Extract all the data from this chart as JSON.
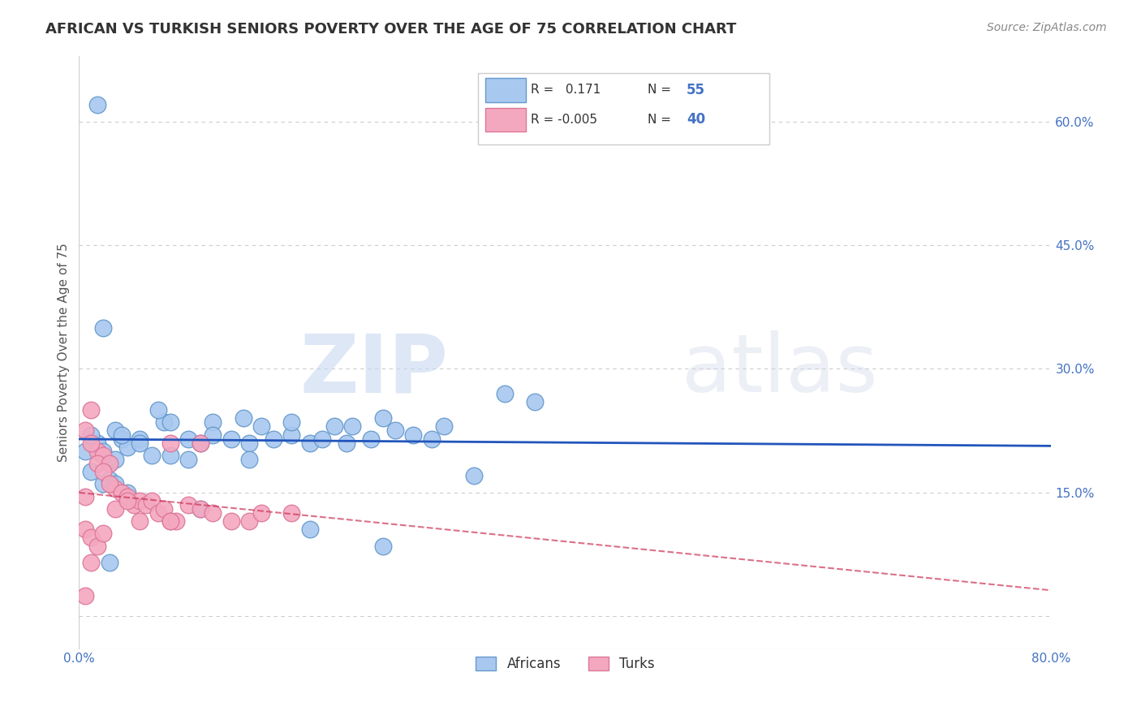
{
  "title": "AFRICAN VS TURKISH SENIORS POVERTY OVER THE AGE OF 75 CORRELATION CHART",
  "source": "Source: ZipAtlas.com",
  "ylabel": "Seniors Poverty Over the Age of 75",
  "xlim": [
    0.0,
    0.8
  ],
  "ylim": [
    -0.04,
    0.68
  ],
  "xticks": [
    0.0,
    0.2,
    0.4,
    0.6,
    0.8
  ],
  "xtick_labels": [
    "0.0%",
    "",
    "",
    "",
    "80.0%"
  ],
  "ytick_values": [
    0.0,
    0.15,
    0.3,
    0.45,
    0.6
  ],
  "ytick_labels": [
    "",
    "15.0%",
    "30.0%",
    "45.0%",
    "60.0%"
  ],
  "grid_color": "#cccccc",
  "background_color": "#ffffff",
  "africans_color": "#a8c8f0",
  "turks_color": "#f4a8c0",
  "africans_edge_color": "#6699cc",
  "turks_edge_color": "#dd7799",
  "trend_blue_color": "#2255bb",
  "trend_pink_color": "#cc3355",
  "R_african": 0.171,
  "N_african": 55,
  "R_turk": -0.005,
  "N_turk": 40,
  "legend_label_african": "Africans",
  "legend_label_turk": "Turks",
  "watermark_zip": "ZIP",
  "watermark_atlas": "atlas",
  "africans_x": [
    0.005,
    0.01,
    0.015,
    0.01,
    0.02,
    0.025,
    0.02,
    0.03,
    0.025,
    0.035,
    0.03,
    0.04,
    0.05,
    0.035,
    0.06,
    0.07,
    0.075,
    0.065,
    0.09,
    0.1,
    0.11,
    0.125,
    0.14,
    0.15,
    0.16,
    0.175,
    0.19,
    0.2,
    0.21,
    0.22,
    0.225,
    0.24,
    0.25,
    0.26,
    0.275,
    0.29,
    0.3,
    0.175,
    0.135,
    0.11,
    0.09,
    0.075,
    0.05,
    0.03,
    0.04,
    0.015,
    0.02,
    0.325,
    0.35,
    0.375,
    0.25,
    0.19,
    0.14,
    0.1,
    0.025
  ],
  "africans_y": [
    0.2,
    0.175,
    0.21,
    0.22,
    0.16,
    0.185,
    0.2,
    0.225,
    0.165,
    0.215,
    0.19,
    0.205,
    0.215,
    0.22,
    0.195,
    0.235,
    0.235,
    0.25,
    0.215,
    0.21,
    0.235,
    0.215,
    0.21,
    0.23,
    0.215,
    0.22,
    0.21,
    0.215,
    0.23,
    0.21,
    0.23,
    0.215,
    0.24,
    0.225,
    0.22,
    0.215,
    0.23,
    0.235,
    0.24,
    0.22,
    0.19,
    0.195,
    0.21,
    0.16,
    0.15,
    0.62,
    0.35,
    0.17,
    0.27,
    0.26,
    0.085,
    0.105,
    0.19,
    0.13,
    0.065
  ],
  "turks_x": [
    0.005,
    0.01,
    0.005,
    0.015,
    0.01,
    0.02,
    0.015,
    0.025,
    0.02,
    0.03,
    0.025,
    0.035,
    0.04,
    0.045,
    0.05,
    0.055,
    0.06,
    0.065,
    0.07,
    0.075,
    0.08,
    0.09,
    0.1,
    0.11,
    0.125,
    0.14,
    0.15,
    0.175,
    0.005,
    0.01,
    0.015,
    0.02,
    0.03,
    0.04,
    0.05,
    0.075,
    0.005,
    0.01,
    0.075,
    0.1
  ],
  "turks_y": [
    0.145,
    0.25,
    0.225,
    0.2,
    0.21,
    0.195,
    0.185,
    0.185,
    0.175,
    0.155,
    0.16,
    0.15,
    0.145,
    0.135,
    0.14,
    0.135,
    0.14,
    0.125,
    0.13,
    0.115,
    0.115,
    0.135,
    0.13,
    0.125,
    0.115,
    0.115,
    0.125,
    0.125,
    0.105,
    0.095,
    0.085,
    0.1,
    0.13,
    0.14,
    0.115,
    0.115,
    0.025,
    0.065,
    0.21,
    0.21
  ]
}
